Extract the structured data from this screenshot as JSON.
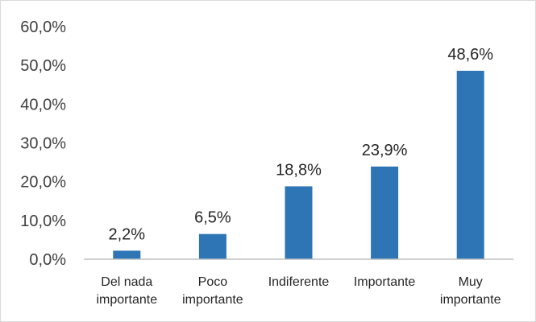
{
  "chart_data": {
    "type": "bar",
    "categories": [
      [
        "Del nada",
        "importante"
      ],
      [
        "Poco",
        "importante"
      ],
      [
        "Indiferente"
      ],
      [
        "Importante"
      ],
      [
        "Muy",
        "importante"
      ]
    ],
    "values": [
      2.2,
      6.5,
      18.8,
      23.9,
      48.6
    ],
    "data_labels": [
      "2,2%",
      "6,5%",
      "18,8%",
      "23,9%",
      "48,6%"
    ],
    "y_ticks": [
      "0,0%",
      "10,0%",
      "20,0%",
      "30,0%",
      "40,0%",
      "50,0%",
      "60,0%"
    ],
    "ylim": [
      0,
      60
    ],
    "bar_color": "#2e75b6",
    "axis_color": "#bfbfbf",
    "grid": false,
    "legend": "none"
  }
}
